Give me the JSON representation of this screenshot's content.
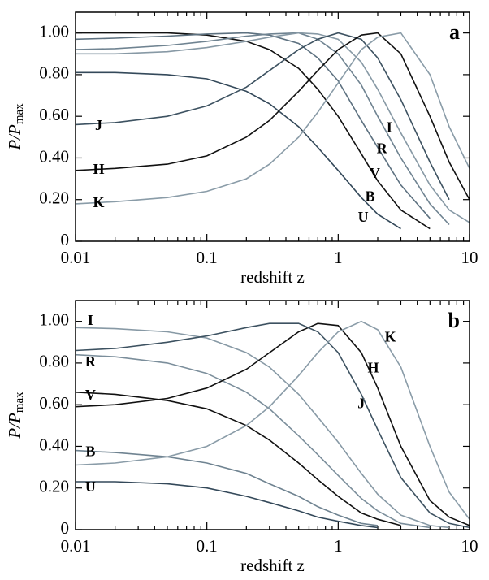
{
  "chart_data": [
    {
      "type": "line",
      "title": "a",
      "xlabel": "redshift z",
      "ylabel": "P/P",
      "ylabel_sub": "max",
      "log_x": true,
      "x": [
        0.01,
        0.02,
        0.05,
        0.1,
        0.2,
        0.3,
        0.5,
        0.7,
        1,
        1.5,
        2,
        3,
        5,
        7,
        10
      ],
      "xlim": [
        0.01,
        10
      ],
      "xticks": [
        0.01,
        0.1,
        1,
        10
      ],
      "ylim": [
        0,
        1.1
      ],
      "yticks": [
        0,
        {
          "value": 0.2,
          "label": "0.20"
        },
        {
          "value": 0.4,
          "label": "0.40"
        },
        {
          "value": 0.6,
          "label": "0.60"
        },
        {
          "value": 0.8,
          "label": "0.80"
        },
        {
          "value": 1,
          "label": "1.00"
        }
      ],
      "series": [
        {
          "name": "U",
          "color": "#34495a",
          "values": [
            0.81,
            0.81,
            0.8,
            0.78,
            0.72,
            0.66,
            0.55,
            0.45,
            0.34,
            0.21,
            0.13,
            0.06,
            null,
            null,
            null
          ]
        },
        {
          "name": "B",
          "color": "#111111",
          "values": [
            1.0,
            1.0,
            1.0,
            0.99,
            0.96,
            0.92,
            0.83,
            0.73,
            0.6,
            0.42,
            0.29,
            0.15,
            0.06,
            null,
            null
          ]
        },
        {
          "name": "V",
          "color": "#5d7180",
          "values": [
            0.97,
            0.975,
            0.985,
            0.995,
            1.0,
            0.99,
            0.95,
            0.88,
            0.77,
            0.58,
            0.45,
            0.27,
            0.11,
            null,
            null
          ]
        },
        {
          "name": "R",
          "color": "#6f8391",
          "values": [
            0.92,
            0.925,
            0.94,
            0.96,
            0.985,
            0.995,
            1.0,
            0.97,
            0.9,
            0.75,
            0.6,
            0.4,
            0.18,
            0.08,
            null
          ]
        },
        {
          "name": "I",
          "color": "#8799a5",
          "values": [
            0.9,
            0.9,
            0.91,
            0.93,
            0.96,
            0.98,
            1.0,
            0.995,
            0.97,
            0.86,
            0.73,
            0.52,
            0.27,
            0.15,
            0.09
          ]
        },
        {
          "name": "J",
          "color": "#3d5261",
          "values": [
            0.56,
            0.57,
            0.6,
            0.65,
            0.74,
            0.82,
            0.92,
            0.97,
            1.0,
            0.97,
            0.88,
            0.68,
            0.38,
            0.2,
            null
          ]
        },
        {
          "name": "H",
          "color": "#111111",
          "values": [
            0.34,
            0.35,
            0.37,
            0.41,
            0.5,
            0.58,
            0.72,
            0.82,
            0.92,
            0.99,
            1.0,
            0.9,
            0.6,
            0.38,
            0.2
          ]
        },
        {
          "name": "K",
          "color": "#8a9ca8",
          "values": [
            0.18,
            0.19,
            0.21,
            0.24,
            0.3,
            0.37,
            0.5,
            0.62,
            0.76,
            0.92,
            0.98,
            1.0,
            0.8,
            0.55,
            0.35
          ]
        }
      ]
    },
    {
      "type": "line",
      "title": "b",
      "xlabel": "redshift z",
      "ylabel": "P/P",
      "ylabel_sub": "max",
      "log_x": true,
      "x": [
        0.01,
        0.02,
        0.05,
        0.1,
        0.2,
        0.3,
        0.5,
        0.7,
        1,
        1.5,
        2,
        3,
        5,
        7,
        10
      ],
      "xlim": [
        0.01,
        10
      ],
      "xticks": [
        0.01,
        0.1,
        1,
        10
      ],
      "ylim": [
        0,
        1.1
      ],
      "yticks": [
        0,
        {
          "value": 0.2,
          "label": "0.20"
        },
        {
          "value": 0.4,
          "label": "0.40"
        },
        {
          "value": 0.6,
          "label": "0.60"
        },
        {
          "value": 0.8,
          "label": "0.80"
        },
        {
          "value": 1,
          "label": "1.00"
        }
      ],
      "series": [
        {
          "name": "U",
          "color": "#34495a",
          "values": [
            0.23,
            0.23,
            0.22,
            0.2,
            0.16,
            0.13,
            0.09,
            0.06,
            0.04,
            0.02,
            0.01,
            null,
            null,
            null,
            null
          ]
        },
        {
          "name": "B",
          "color": "#6f8391",
          "values": [
            0.38,
            0.37,
            0.35,
            0.32,
            0.27,
            0.22,
            0.16,
            0.11,
            0.07,
            0.03,
            0.02,
            null,
            null,
            null,
            null
          ]
        },
        {
          "name": "V",
          "color": "#111111",
          "values": [
            0.66,
            0.65,
            0.62,
            0.58,
            0.5,
            0.43,
            0.32,
            0.24,
            0.16,
            0.08,
            0.05,
            0.02,
            null,
            null,
            null
          ]
        },
        {
          "name": "R",
          "color": "#7b8e9b",
          "values": [
            0.84,
            0.83,
            0.8,
            0.75,
            0.66,
            0.58,
            0.45,
            0.36,
            0.26,
            0.15,
            0.09,
            0.03,
            0.01,
            null,
            null
          ]
        },
        {
          "name": "I",
          "color": "#8799a5",
          "values": [
            0.97,
            0.965,
            0.95,
            0.92,
            0.85,
            0.78,
            0.65,
            0.54,
            0.42,
            0.27,
            0.17,
            0.07,
            0.02,
            0.01,
            null
          ]
        },
        {
          "name": "J",
          "color": "#111111",
          "values": [
            0.59,
            0.6,
            0.63,
            0.68,
            0.77,
            0.85,
            0.95,
            0.99,
            0.98,
            0.85,
            0.68,
            0.4,
            0.14,
            0.06,
            0.02
          ]
        },
        {
          "name": "H",
          "color": "#3d5261",
          "values": [
            0.86,
            0.87,
            0.9,
            0.93,
            0.97,
            0.99,
            0.99,
            0.95,
            0.85,
            0.65,
            0.48,
            0.25,
            0.08,
            0.03,
            0.01
          ]
        },
        {
          "name": "K",
          "color": "#8a9ca8",
          "values": [
            0.31,
            0.32,
            0.35,
            0.4,
            0.5,
            0.59,
            0.74,
            0.85,
            0.95,
            1.0,
            0.96,
            0.78,
            0.4,
            0.18,
            0.05
          ]
        }
      ]
    }
  ]
}
